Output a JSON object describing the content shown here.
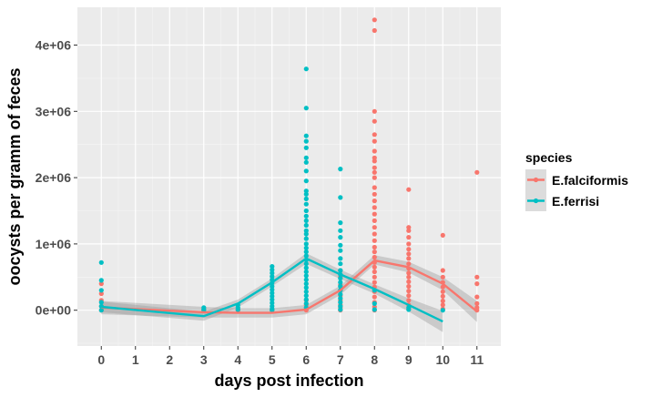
{
  "chart_data": {
    "type": "scatter",
    "xlabel": "days post infection",
    "ylabel": "oocysts per gramm of feces",
    "xlim": [
      -0.7,
      11.7
    ],
    "ylim": [
      -540000,
      4570000
    ],
    "x_ticks": [
      0,
      1,
      2,
      3,
      4,
      5,
      6,
      7,
      8,
      9,
      10,
      11
    ],
    "y_ticks": [
      0,
      1000000,
      2000000,
      3000000,
      4000000
    ],
    "y_tick_labels": [
      "0e+00",
      "1e+06",
      "2e+06",
      "3e+06",
      "4e+06"
    ],
    "grid": true,
    "panel_background": "#ebebeb",
    "legend": {
      "title": "species",
      "position": "right"
    },
    "series": [
      {
        "name": "E.falciformis",
        "color": "#f8766d",
        "points": [
          [
            0,
            400000
          ],
          [
            0,
            250000
          ],
          [
            0,
            150000
          ],
          [
            0,
            60000
          ],
          [
            0,
            0
          ],
          [
            3,
            0
          ],
          [
            3,
            20000
          ],
          [
            4,
            0
          ],
          [
            4,
            20000
          ],
          [
            5,
            0
          ],
          [
            5,
            10000
          ],
          [
            6,
            0
          ],
          [
            6,
            30000
          ],
          [
            6,
            80000
          ],
          [
            6,
            150000
          ],
          [
            7,
            0
          ],
          [
            7,
            40000
          ],
          [
            7,
            80000
          ],
          [
            7,
            150000
          ],
          [
            7,
            220000
          ],
          [
            7,
            300000
          ],
          [
            7,
            380000
          ],
          [
            7,
            500000
          ],
          [
            7,
            600000
          ],
          [
            8,
            4380000
          ],
          [
            8,
            4220000
          ],
          [
            8,
            3000000
          ],
          [
            8,
            2850000
          ],
          [
            8,
            2650000
          ],
          [
            8,
            2550000
          ],
          [
            8,
            2400000
          ],
          [
            8,
            2300000
          ],
          [
            8,
            2250000
          ],
          [
            8,
            2150000
          ],
          [
            8,
            2080000
          ],
          [
            8,
            2000000
          ],
          [
            8,
            1850000
          ],
          [
            8,
            1750000
          ],
          [
            8,
            1650000
          ],
          [
            8,
            1550000
          ],
          [
            8,
            1450000
          ],
          [
            8,
            1350000
          ],
          [
            8,
            1250000
          ],
          [
            8,
            1150000
          ],
          [
            8,
            1050000
          ],
          [
            8,
            950000
          ],
          [
            8,
            880000
          ],
          [
            8,
            800000
          ],
          [
            8,
            720000
          ],
          [
            8,
            650000
          ],
          [
            8,
            580000
          ],
          [
            8,
            500000
          ],
          [
            8,
            420000
          ],
          [
            8,
            350000
          ],
          [
            8,
            280000
          ],
          [
            8,
            200000
          ],
          [
            8,
            120000
          ],
          [
            8,
            50000
          ],
          [
            8,
            0
          ],
          [
            9,
            1820000
          ],
          [
            9,
            1250000
          ],
          [
            9,
            1200000
          ],
          [
            9,
            1100000
          ],
          [
            9,
            1000000
          ],
          [
            9,
            920000
          ],
          [
            9,
            850000
          ],
          [
            9,
            780000
          ],
          [
            9,
            700000
          ],
          [
            9,
            630000
          ],
          [
            9,
            560000
          ],
          [
            9,
            500000
          ],
          [
            9,
            430000
          ],
          [
            9,
            360000
          ],
          [
            9,
            290000
          ],
          [
            9,
            220000
          ],
          [
            9,
            150000
          ],
          [
            9,
            80000
          ],
          [
            9,
            20000
          ],
          [
            10,
            1130000
          ],
          [
            10,
            600000
          ],
          [
            10,
            500000
          ],
          [
            10,
            420000
          ],
          [
            10,
            350000
          ],
          [
            10,
            280000
          ],
          [
            10,
            210000
          ],
          [
            10,
            140000
          ],
          [
            10,
            80000
          ],
          [
            10,
            20000
          ],
          [
            11,
            2080000
          ],
          [
            11,
            500000
          ],
          [
            11,
            400000
          ],
          [
            11,
            200000
          ],
          [
            11,
            100000
          ],
          [
            11,
            40000
          ],
          [
            11,
            0
          ]
        ],
        "fit": [
          [
            0,
            40000
          ],
          [
            3,
            -30000
          ],
          [
            4,
            -40000
          ],
          [
            5,
            -40000
          ],
          [
            6,
            10000
          ],
          [
            7,
            300000
          ],
          [
            8,
            750000
          ],
          [
            9,
            650000
          ],
          [
            10,
            400000
          ],
          [
            11,
            -20000
          ]
        ],
        "ribbon": [
          [
            0,
            -60000,
            140000
          ],
          [
            3,
            -110000,
            50000
          ],
          [
            4,
            -110000,
            30000
          ],
          [
            5,
            -110000,
            30000
          ],
          [
            6,
            -60000,
            80000
          ],
          [
            7,
            230000,
            370000
          ],
          [
            8,
            690000,
            830000
          ],
          [
            9,
            570000,
            730000
          ],
          [
            10,
            300000,
            500000
          ],
          [
            11,
            -180000,
            140000
          ]
        ]
      },
      {
        "name": "E.ferrisi",
        "color": "#00bfc4",
        "points": [
          [
            0,
            720000
          ],
          [
            0,
            450000
          ],
          [
            0,
            300000
          ],
          [
            0,
            120000
          ],
          [
            0,
            60000
          ],
          [
            0,
            0
          ],
          [
            3,
            40000
          ],
          [
            3,
            10000
          ],
          [
            3,
            0
          ],
          [
            4,
            80000
          ],
          [
            4,
            40000
          ],
          [
            4,
            10000
          ],
          [
            5,
            660000
          ],
          [
            5,
            610000
          ],
          [
            5,
            560000
          ],
          [
            5,
            510000
          ],
          [
            5,
            460000
          ],
          [
            5,
            410000
          ],
          [
            5,
            360000
          ],
          [
            5,
            310000
          ],
          [
            5,
            260000
          ],
          [
            5,
            210000
          ],
          [
            5,
            160000
          ],
          [
            5,
            110000
          ],
          [
            5,
            60000
          ],
          [
            5,
            20000
          ],
          [
            5,
            0
          ],
          [
            6,
            3640000
          ],
          [
            6,
            3050000
          ],
          [
            6,
            2630000
          ],
          [
            6,
            2550000
          ],
          [
            6,
            2450000
          ],
          [
            6,
            2300000
          ],
          [
            6,
            2230000
          ],
          [
            6,
            2100000
          ],
          [
            6,
            1950000
          ],
          [
            6,
            1800000
          ],
          [
            6,
            1750000
          ],
          [
            6,
            1680000
          ],
          [
            6,
            1600000
          ],
          [
            6,
            1500000
          ],
          [
            6,
            1420000
          ],
          [
            6,
            1350000
          ],
          [
            6,
            1280000
          ],
          [
            6,
            1200000
          ],
          [
            6,
            1150000
          ],
          [
            6,
            1080000
          ],
          [
            6,
            1000000
          ],
          [
            6,
            940000
          ],
          [
            6,
            880000
          ],
          [
            6,
            820000
          ],
          [
            6,
            760000
          ],
          [
            6,
            700000
          ],
          [
            6,
            640000
          ],
          [
            6,
            580000
          ],
          [
            6,
            520000
          ],
          [
            6,
            460000
          ],
          [
            6,
            400000
          ],
          [
            6,
            340000
          ],
          [
            6,
            280000
          ],
          [
            6,
            220000
          ],
          [
            6,
            160000
          ],
          [
            6,
            100000
          ],
          [
            6,
            40000
          ],
          [
            7,
            2130000
          ],
          [
            7,
            1700000
          ],
          [
            7,
            1320000
          ],
          [
            7,
            1200000
          ],
          [
            7,
            1100000
          ],
          [
            7,
            980000
          ],
          [
            7,
            900000
          ],
          [
            7,
            780000
          ],
          [
            7,
            700000
          ],
          [
            7,
            600000
          ],
          [
            7,
            540000
          ],
          [
            7,
            480000
          ],
          [
            7,
            420000
          ],
          [
            7,
            360000
          ],
          [
            7,
            300000
          ],
          [
            7,
            240000
          ],
          [
            7,
            180000
          ],
          [
            7,
            120000
          ],
          [
            7,
            60000
          ],
          [
            7,
            10000
          ],
          [
            8,
            300000
          ],
          [
            8,
            100000
          ],
          [
            8,
            10000
          ],
          [
            9,
            40000
          ],
          [
            9,
            10000
          ],
          [
            10,
            0
          ]
        ],
        "fit": [
          [
            0,
            50000
          ],
          [
            3,
            -90000
          ],
          [
            4,
            100000
          ],
          [
            5,
            420000
          ],
          [
            6,
            780000
          ],
          [
            7,
            540000
          ],
          [
            8,
            320000
          ],
          [
            9,
            80000
          ],
          [
            10,
            -170000
          ]
        ],
        "ribbon": [
          [
            0,
            -30000,
            130000
          ],
          [
            3,
            -160000,
            -20000
          ],
          [
            4,
            40000,
            160000
          ],
          [
            5,
            360000,
            480000
          ],
          [
            6,
            700000,
            860000
          ],
          [
            7,
            470000,
            610000
          ],
          [
            8,
            250000,
            390000
          ],
          [
            9,
            -20000,
            180000
          ],
          [
            10,
            -330000,
            -10000
          ]
        ]
      }
    ]
  }
}
